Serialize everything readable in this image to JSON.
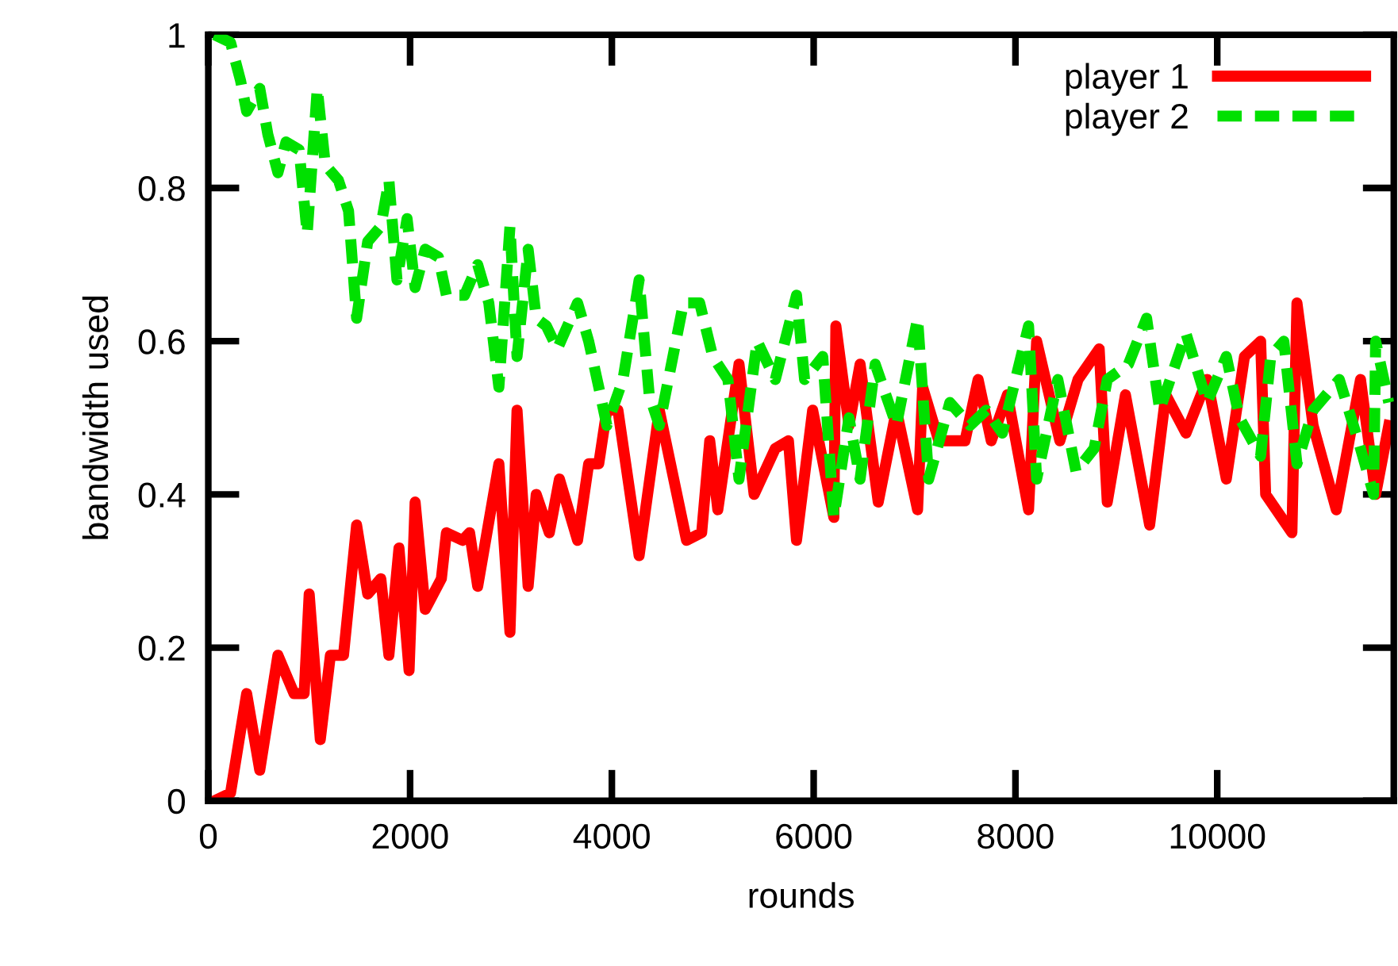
{
  "chart_data": {
    "type": "line",
    "xlabel": "rounds",
    "ylabel": "bandwidth used",
    "xlim": [
      0,
      11750
    ],
    "ylim": [
      0,
      1
    ],
    "xticks": [
      0,
      2000,
      4000,
      6000,
      8000,
      10000
    ],
    "yticks": [
      0,
      0.2,
      0.4,
      0.6,
      0.8,
      1
    ],
    "grid": false,
    "legend": "top right",
    "marker": "none",
    "series": [
      {
        "name": "player 1",
        "color": "#ff0000",
        "line_style": "solid",
        "x": [
          60,
          220,
          380,
          510,
          690,
          850,
          950,
          1000,
          1110,
          1210,
          1340,
          1470,
          1580,
          1710,
          1790,
          1890,
          1990,
          2050,
          2150,
          2310,
          2360,
          2520,
          2590,
          2670,
          2880,
          2990,
          3060,
          3170,
          3250,
          3380,
          3480,
          3660,
          3770,
          3870,
          3950,
          4060,
          4270,
          4470,
          4740,
          4890,
          4970,
          5050,
          5260,
          5410,
          5620,
          5750,
          5830,
          5990,
          6200,
          6220,
          6350,
          6460,
          6640,
          6820,
          7030,
          7080,
          7240,
          7500,
          7630,
          7760,
          7920,
          8130,
          8210,
          8440,
          8620,
          8830,
          8910,
          9090,
          9330,
          9490,
          9690,
          9900,
          10090,
          10270,
          10430,
          10480,
          10740,
          10790,
          10950,
          11180,
          11420,
          11570,
          11700
        ],
        "values": [
          0,
          0.01,
          0.14,
          0.04,
          0.19,
          0.14,
          0.14,
          0.27,
          0.08,
          0.19,
          0.19,
          0.36,
          0.27,
          0.29,
          0.19,
          0.33,
          0.17,
          0.39,
          0.25,
          0.29,
          0.35,
          0.34,
          0.35,
          0.28,
          0.44,
          0.22,
          0.51,
          0.28,
          0.4,
          0.35,
          0.42,
          0.34,
          0.44,
          0.44,
          0.51,
          0.51,
          0.32,
          0.51,
          0.34,
          0.35,
          0.47,
          0.38,
          0.57,
          0.4,
          0.46,
          0.47,
          0.34,
          0.51,
          0.37,
          0.62,
          0.49,
          0.57,
          0.39,
          0.51,
          0.38,
          0.54,
          0.47,
          0.47,
          0.55,
          0.47,
          0.53,
          0.38,
          0.6,
          0.47,
          0.55,
          0.59,
          0.39,
          0.53,
          0.36,
          0.53,
          0.48,
          0.55,
          0.42,
          0.58,
          0.6,
          0.4,
          0.35,
          0.65,
          0.49,
          0.38,
          0.55,
          0.4,
          0.49
        ]
      },
      {
        "name": "player 2",
        "color": "#00e000",
        "line_style": "dashed",
        "x": [
          60,
          220,
          320,
          380,
          510,
          590,
          690,
          770,
          900,
          980,
          1080,
          1160,
          1290,
          1390,
          1470,
          1580,
          1710,
          1790,
          1870,
          1970,
          2050,
          2150,
          2280,
          2360,
          2540,
          2670,
          2780,
          2880,
          2990,
          3060,
          3170,
          3250,
          3350,
          3460,
          3660,
          3770,
          3870,
          3950,
          4110,
          4270,
          4370,
          4470,
          4710,
          4870,
          5000,
          5150,
          5260,
          5440,
          5620,
          5830,
          5910,
          6090,
          6200,
          6350,
          6460,
          6610,
          6820,
          7030,
          7140,
          7350,
          7550,
          7710,
          7870,
          8130,
          8210,
          8420,
          8600,
          8780,
          8910,
          9120,
          9300,
          9430,
          9690,
          9900,
          10090,
          10220,
          10430,
          10530,
          10660,
          10790,
          10950,
          11210,
          11420,
          11550,
          11570,
          11700
        ],
        "values": [
          1.0,
          0.99,
          0.94,
          0.9,
          0.93,
          0.87,
          0.82,
          0.86,
          0.85,
          0.74,
          0.93,
          0.83,
          0.81,
          0.77,
          0.63,
          0.73,
          0.75,
          0.81,
          0.68,
          0.76,
          0.67,
          0.72,
          0.71,
          0.66,
          0.66,
          0.7,
          0.65,
          0.54,
          0.75,
          0.58,
          0.72,
          0.63,
          0.62,
          0.59,
          0.65,
          0.6,
          0.54,
          0.49,
          0.55,
          0.68,
          0.53,
          0.49,
          0.65,
          0.65,
          0.58,
          0.55,
          0.42,
          0.6,
          0.55,
          0.66,
          0.55,
          0.58,
          0.37,
          0.5,
          0.42,
          0.57,
          0.49,
          0.63,
          0.42,
          0.52,
          0.49,
          0.51,
          0.48,
          0.62,
          0.42,
          0.55,
          0.43,
          0.46,
          0.55,
          0.57,
          0.63,
          0.51,
          0.61,
          0.52,
          0.58,
          0.5,
          0.45,
          0.58,
          0.6,
          0.44,
          0.51,
          0.55,
          0.46,
          0.4,
          0.6,
          0.52
        ]
      }
    ]
  }
}
